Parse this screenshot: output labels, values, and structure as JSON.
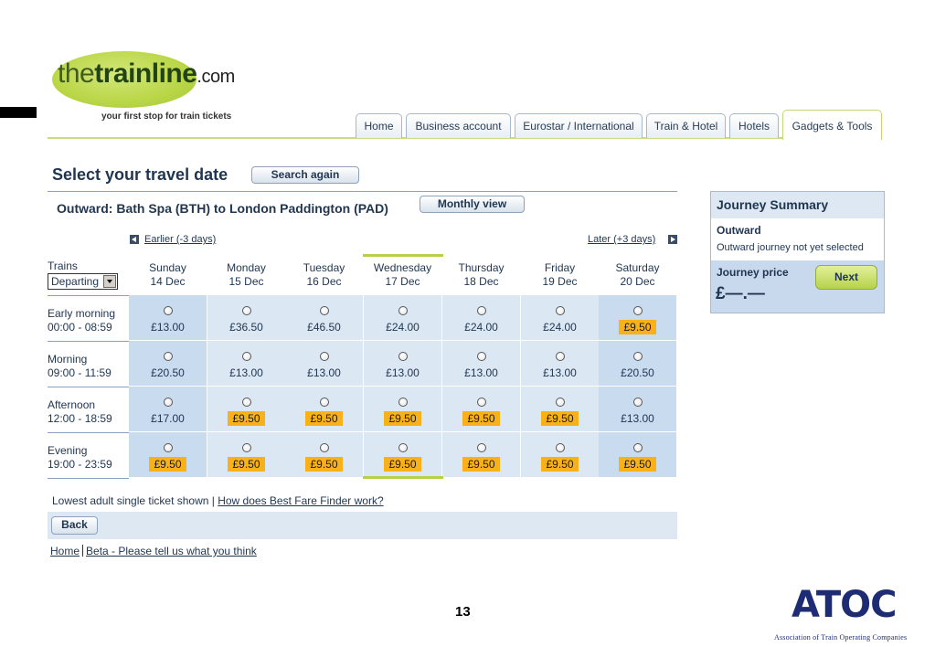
{
  "header": {
    "logo": {
      "prefix": "the",
      "bold": "trainline",
      "suffix": ".com"
    },
    "tagline": "your first stop for train tickets",
    "tabs": [
      {
        "label": "Home"
      },
      {
        "label": "Business account"
      },
      {
        "label": "Eurostar / International"
      },
      {
        "label": "Train & Hotel"
      },
      {
        "label": "Hotels"
      },
      {
        "label": "Gadgets & Tools",
        "active": true
      }
    ]
  },
  "main": {
    "title": "Select your travel date",
    "search_again_label": "Search again",
    "route": "Outward: Bath Spa (BTH) to London Paddington (PAD)",
    "monthly_view_label": "Monthly view",
    "earlier_label": "Earlier (-3 days)",
    "later_label": "Later (+3 days)",
    "trains_label": "Trains",
    "departing_value": "Departing",
    "days": [
      {
        "day": "Sunday",
        "date": "14 Dec"
      },
      {
        "day": "Monday",
        "date": "15 Dec"
      },
      {
        "day": "Tuesday",
        "date": "16 Dec"
      },
      {
        "day": "Wednesday",
        "date": "17 Dec"
      },
      {
        "day": "Thursday",
        "date": "18 Dec"
      },
      {
        "day": "Friday",
        "date": "19 Dec"
      },
      {
        "day": "Saturday",
        "date": "20 Dec"
      }
    ],
    "periods": [
      {
        "name": "Early morning",
        "time": "00:00 - 08:59",
        "prices": [
          "£13.00",
          "£36.50",
          "£46.50",
          "£24.00",
          "£24.00",
          "£24.00",
          "£9.50"
        ],
        "cheapest": [
          false,
          false,
          false,
          false,
          false,
          false,
          true
        ]
      },
      {
        "name": "Morning",
        "time": "09:00 - 11:59",
        "prices": [
          "£20.50",
          "£13.00",
          "£13.00",
          "£13.00",
          "£13.00",
          "£13.00",
          "£20.50"
        ],
        "cheapest": [
          false,
          false,
          false,
          false,
          false,
          false,
          false
        ]
      },
      {
        "name": "Afternoon",
        "time": "12:00 - 18:59",
        "prices": [
          "£17.00",
          "£9.50",
          "£9.50",
          "£9.50",
          "£9.50",
          "£9.50",
          "£13.00"
        ],
        "cheapest": [
          false,
          true,
          true,
          true,
          true,
          true,
          false
        ]
      },
      {
        "name": "Evening",
        "time": "19:00 - 23:59",
        "prices": [
          "£9.50",
          "£9.50",
          "£9.50",
          "£9.50",
          "£9.50",
          "£9.50",
          "£9.50"
        ],
        "cheapest": [
          true,
          true,
          true,
          true,
          true,
          true,
          true
        ]
      }
    ],
    "lowest_text": "Lowest adult single ticket shown | ",
    "how_link": "How does Best Fare Finder work?",
    "back_label": "Back",
    "footer_home": "Home",
    "footer_beta": "Beta - Please tell us what you think"
  },
  "summary": {
    "title": "Journey Summary",
    "outward_label": "Outward",
    "outward_status": "Outward journey not yet selected",
    "price_label": "Journey price",
    "price_value": "£—.—",
    "next_label": "Next"
  },
  "slide": {
    "page_number": "13",
    "atoc_logo": "ATOC",
    "atoc_subtitle": "Association of Train Operating Companies"
  },
  "colors": {
    "accent_green": "#b7d046",
    "navy": "#1f3550",
    "cheap_highlight": "#f9b11a",
    "cell_light": "#dbe7f3",
    "cell_dark": "#c8dbef"
  }
}
